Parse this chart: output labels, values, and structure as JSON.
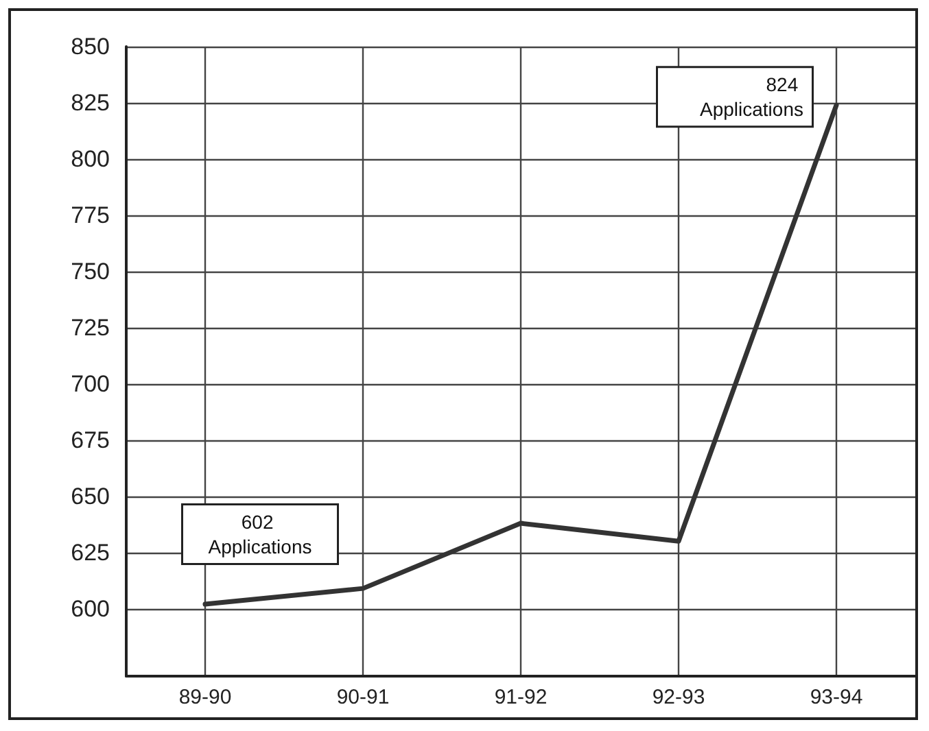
{
  "chart_data": {
    "type": "line",
    "categories": [
      "89-90",
      "90-91",
      "91-92",
      "92-93",
      "93-94"
    ],
    "series": [
      {
        "color": "#333333",
        "values": [
          602,
          609,
          638,
          630,
          824
        ]
      }
    ],
    "ylim": [
      570,
      850
    ],
    "yticks": [
      600,
      625,
      650,
      675,
      700,
      725,
      750,
      775,
      800,
      825,
      850
    ],
    "grid": true,
    "marker": "none",
    "line_style": "solid",
    "annotations": [
      {
        "text": "602 Applications",
        "x": "89-90",
        "y": 602
      },
      {
        "text": "824 Applications",
        "x": "93-94",
        "y": 824
      }
    ]
  }
}
